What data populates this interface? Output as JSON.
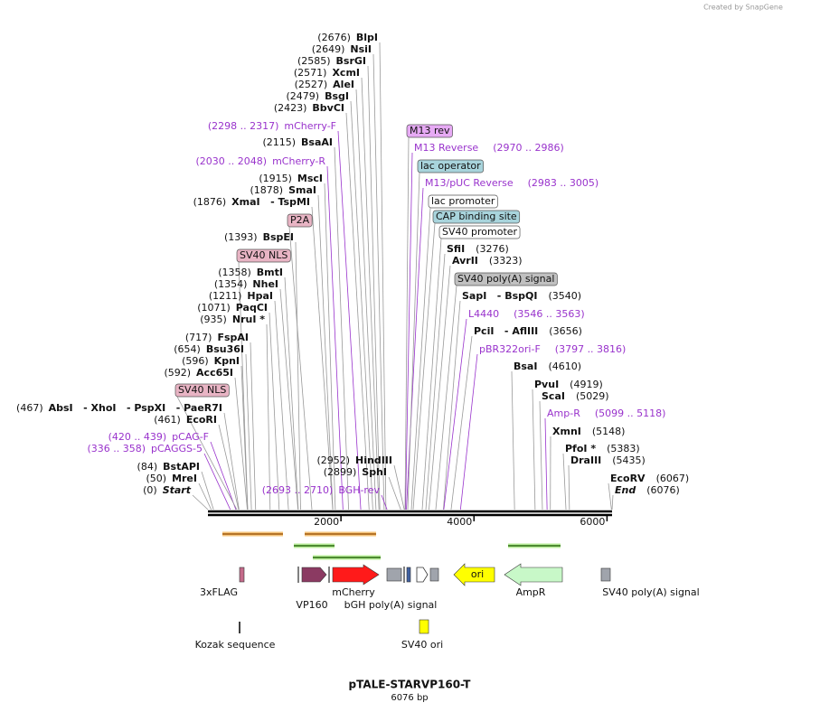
{
  "watermark": "Created by SnapGene",
  "title": "pTALE-STARVP160-T",
  "subtitle": "6076 bp",
  "axis": {
    "xlim": [
      0,
      6076
    ],
    "ticks": [
      2000,
      4000,
      6000
    ]
  },
  "sites": [
    {
      "pos": {
        "value": 2676,
        "label": "(2676)"
      },
      "name": "BlpI"
    },
    {
      "pos": {
        "value": 2649,
        "label": "(2649)"
      },
      "name": "NsiI"
    },
    {
      "pos": {
        "value": 2585,
        "label": "(2585)"
      },
      "name": "BsrGI"
    },
    {
      "pos": {
        "value": 2571,
        "label": "(2571)"
      },
      "name": "XcmI"
    },
    {
      "pos": {
        "value": 2527,
        "label": "(2527)"
      },
      "name": "AleI"
    },
    {
      "pos": {
        "value": 2479,
        "label": "(2479)"
      },
      "name": "BsgI"
    },
    {
      "pos": {
        "value": 2423,
        "label": "(2423)"
      },
      "name": "BbvCI"
    },
    {
      "pos": {
        "value": 2115,
        "label": "(2115)"
      },
      "name": "BsaAI"
    },
    {
      "pos": {
        "value": 1915,
        "label": "(1915)"
      },
      "name": "MscI"
    },
    {
      "pos": {
        "value": 1878,
        "label": "(1878)"
      },
      "name": "SmaI"
    },
    {
      "pos": {
        "value": 1876,
        "label": "(1876)"
      },
      "name": "XmaI   - TspMI"
    },
    {
      "pos": {
        "value": 1393,
        "label": "(1393)"
      },
      "name": "BspEI"
    },
    {
      "pos": {
        "value": 1358,
        "label": "(1358)"
      },
      "name": "BmtI"
    },
    {
      "pos": {
        "value": 1354,
        "label": "(1354)"
      },
      "name": "NheI"
    },
    {
      "pos": {
        "value": 1211,
        "label": "(1211)"
      },
      "name": "HpaI"
    },
    {
      "pos": {
        "value": 1071,
        "label": "(1071)"
      },
      "name": "PaqCI"
    },
    {
      "pos": {
        "value": 935,
        "label": "(935)"
      },
      "name": "NruI *"
    },
    {
      "pos": {
        "value": 717,
        "label": "(717)"
      },
      "name": "FspAI"
    },
    {
      "pos": {
        "value": 654,
        "label": "(654)"
      },
      "name": "Bsu36I"
    },
    {
      "pos": {
        "value": 596,
        "label": "(596)"
      },
      "name": "KpnI"
    },
    {
      "pos": {
        "value": 592,
        "label": "(592)"
      },
      "name": "Acc65I"
    },
    {
      "pos": {
        "value": 467,
        "label": "(467)"
      },
      "name": "AbsI   - XhoI   - PspXI   - PaeR7I"
    },
    {
      "pos": {
        "value": 461,
        "label": "(461)"
      },
      "name": "EcoRI"
    },
    {
      "pos": {
        "value": 84,
        "label": "(84)"
      },
      "name": "BstAPI"
    },
    {
      "pos": {
        "value": 50,
        "label": "(50)"
      },
      "name": "MreI"
    },
    {
      "pos": {
        "value": 0,
        "label": "(0)"
      },
      "name": "Start"
    },
    {
      "pos": {
        "value": 2952,
        "label": "(2952)"
      },
      "name": "HindIII"
    },
    {
      "pos": {
        "value": 2899,
        "label": "(2899)"
      },
      "name": "SphI"
    },
    {
      "pos": {
        "value": 3276,
        "label": "(3276)"
      },
      "name": "SfiI"
    },
    {
      "pos": {
        "value": 3323,
        "label": "(3323)"
      },
      "name": "AvrII"
    },
    {
      "pos": {
        "value": 3540,
        "label": "(3540)"
      },
      "name": "SapI   - BspQI"
    },
    {
      "pos": {
        "value": 3656,
        "label": "(3656)"
      },
      "name": "PciI   - AflIII"
    },
    {
      "pos": {
        "value": 4610,
        "label": "(4610)"
      },
      "name": "BsaI"
    },
    {
      "pos": {
        "value": 4919,
        "label": "(4919)"
      },
      "name": "PvuI"
    },
    {
      "pos": {
        "value": 5029,
        "label": "(5029)"
      },
      "name": "ScaI"
    },
    {
      "pos": {
        "value": 5148,
        "label": "(5148)"
      },
      "name": "XmnI"
    },
    {
      "pos": {
        "value": 5383,
        "label": "(5383)"
      },
      "name": "PfoI *"
    },
    {
      "pos": {
        "value": 5435,
        "label": "(5435)"
      },
      "name": "DraIII"
    },
    {
      "pos": {
        "value": 6067,
        "label": "(6067)"
      },
      "name": "EcoRV"
    },
    {
      "pos": {
        "value": 6076,
        "label": "(6076)"
      },
      "name": "End"
    }
  ],
  "primers": [
    {
      "name": "mCherry-F",
      "range": {
        "start": 2298,
        "end": 2317,
        "label": "(2298 .. 2317)"
      }
    },
    {
      "name": "mCherry-R",
      "range": {
        "start": 2030,
        "end": 2048,
        "label": "(2030 .. 2048)"
      }
    },
    {
      "name": "pCAG-F",
      "range": {
        "start": 420,
        "end": 439,
        "label": "(420 .. 439)"
      }
    },
    {
      "name": "pCAGGS-5",
      "range": {
        "start": 336,
        "end": 358,
        "label": "(336 .. 358)"
      }
    },
    {
      "name": "BGH-rev",
      "range": {
        "start": 2693,
        "end": 2710,
        "label": "(2693 .. 2710)"
      }
    },
    {
      "name": "M13 Reverse",
      "range": {
        "start": 2970,
        "end": 2986,
        "label": "(2970 .. 2986)"
      }
    },
    {
      "name": "M13/pUC Reverse",
      "range": {
        "start": 2983,
        "end": 3005,
        "label": "(2983 .. 3005)"
      }
    },
    {
      "name": "L4440",
      "range": {
        "start": 3546,
        "end": 3563,
        "label": "(3546 .. 3563)"
      }
    },
    {
      "name": "pBR322ori-F",
      "range": {
        "start": 3797,
        "end": 3816,
        "label": "(3797 .. 3816)"
      }
    },
    {
      "name": "Amp-R",
      "range": {
        "start": 5099,
        "end": 5118,
        "label": "(5099 .. 5118)"
      }
    }
  ],
  "feature_tags": [
    "P2A",
    "SV40 NLS",
    "M13 rev",
    "SV40 NLS",
    "lac operator",
    "lac promoter",
    "CAP binding site",
    "SV40 promoter",
    "SV40 poly(A) signal"
  ],
  "features": [
    "3xFLAG",
    "VP160",
    "mCherry",
    "bGH poly(A) signal",
    "ori",
    "AmpR",
    "SV40 poly(A) signal",
    "Kozak sequence",
    "SV40 ori"
  ]
}
